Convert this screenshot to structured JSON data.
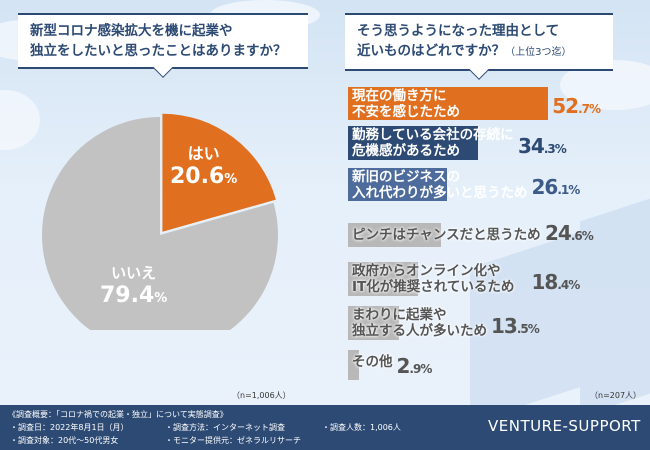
{
  "left": {
    "question_line1": "新型コロナ感染拡大を機に起業や",
    "question_line2": "独立をしたいと思ったことはありますか？",
    "note": "（n=1,006人）"
  },
  "right": {
    "question_line1": "そう思うようになった理由として",
    "question_line2": "近いものはどれですか？",
    "question_suffix": "（上位3つ迄）",
    "note": "（n=207人）"
  },
  "chart_data": [
    {
      "type": "pie",
      "unit": "%",
      "slices": [
        {
          "label": "はい",
          "value": 20.6,
          "color": "#e07020"
        },
        {
          "label": "いいえ",
          "value": 79.4,
          "color": "#c2c2c2"
        }
      ]
    },
    {
      "type": "bar",
      "orientation": "horizontal",
      "unit": "%",
      "categories": [
        [
          "現在の働き方に",
          "不安を感じたため"
        ],
        [
          "勤務している会社の存続に",
          "危機感があるため"
        ],
        [
          "新旧のビジネスの",
          "入れ代わりが多いと思うため"
        ],
        [
          "ピンチはチャンスだと思うため"
        ],
        [
          "政府からオンライン化や",
          "IT化が推奨されているため"
        ],
        [
          "まわりに起業や",
          "独立する人が多いため"
        ],
        [
          "その他"
        ]
      ],
      "values": [
        52.7,
        34.3,
        26.1,
        24.6,
        18.4,
        13.5,
        2.9
      ],
      "bar_colors": [
        "#e07020",
        "#2c4a74",
        "#4d6c9c",
        "#b8b8b8",
        "#b8b8b8",
        "#b8b8b8",
        "#b8b8b8"
      ],
      "value_colors": [
        "#e07020",
        "#2c4a74",
        "#3d5a88",
        "#555555",
        "#555555",
        "#555555",
        "#555555"
      ]
    }
  ],
  "footer": {
    "title": "《調査概要：「コロナ禍での起業・独立」について実態調査》",
    "items": [
      "・調査日：2022年8月1日（月）",
      "・調査方法：インターネット調査",
      "・調査人数：1,006人",
      "・調査対象：20代～50代男女",
      "・モニター提供元：ゼネラルリサーチ"
    ],
    "brand": "VENTURE-SUPPORT"
  }
}
